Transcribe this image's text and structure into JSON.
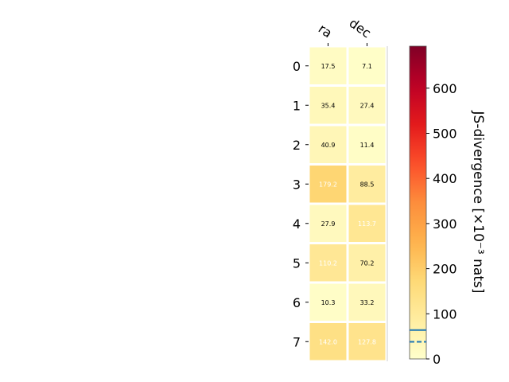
{
  "chart_data": {
    "type": "heatmap",
    "columns": [
      "ra",
      "dec"
    ],
    "rows": [
      "0",
      "1",
      "2",
      "3",
      "4",
      "5",
      "6",
      "7"
    ],
    "values": [
      [
        17.5,
        7.1
      ],
      [
        35.4,
        27.4
      ],
      [
        40.9,
        11.4
      ],
      [
        179.2,
        88.5
      ],
      [
        27.9,
        113.7
      ],
      [
        110.2,
        70.2
      ],
      [
        10.3,
        33.2
      ],
      [
        142.0,
        127.8
      ]
    ],
    "cell_labels": [
      [
        "17.5",
        "7.1"
      ],
      [
        "35.4",
        "27.4"
      ],
      [
        "40.9",
        "11.4"
      ],
      [
        "179.2",
        "88.5"
      ],
      [
        "27.9",
        "113.7"
      ],
      [
        "110.2",
        "70.2"
      ],
      [
        "10.3",
        "33.2"
      ],
      [
        "142.0",
        "127.8"
      ]
    ],
    "colorbar": {
      "label": "JS-divergence [×10⁻³ nats]",
      "range": [
        0,
        693.1
      ],
      "ticks": [
        "0",
        "100",
        "200",
        "300",
        "400",
        "500",
        "600"
      ],
      "tick_values": [
        0,
        100,
        200,
        300,
        400,
        500,
        600
      ],
      "colormap": "YlOrRd",
      "solid_line_value": 64,
      "dashed_line_value": 38,
      "line_color": "#1f77b4"
    },
    "label_color_threshold": 100
  }
}
